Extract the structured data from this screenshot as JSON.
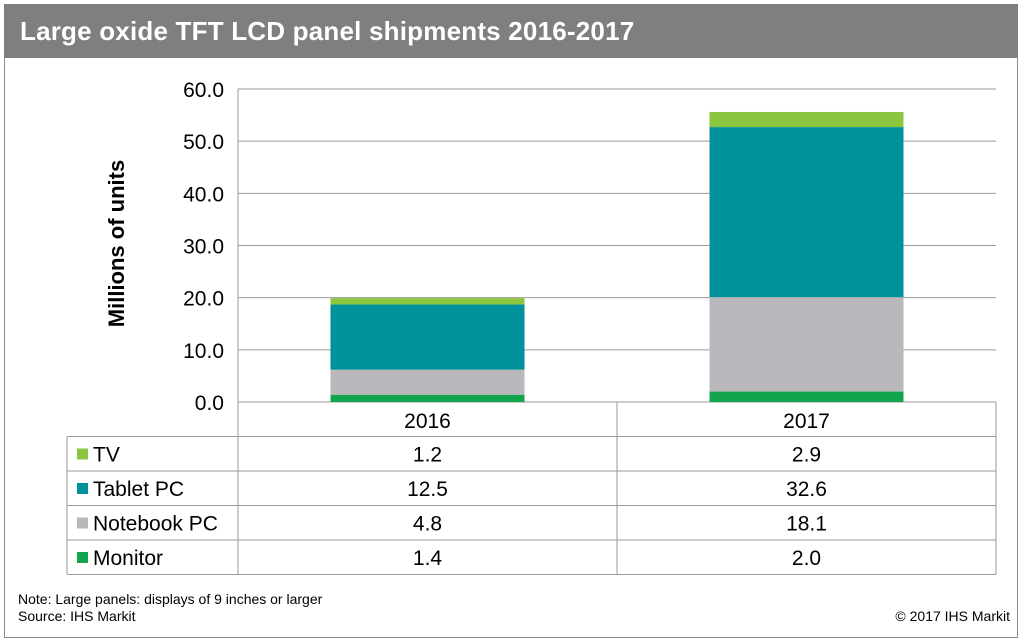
{
  "header": {
    "title": "Large oxide TFT LCD panel shipments 2016-2017"
  },
  "chart_data": {
    "type": "bar",
    "stacked": true,
    "title": "Large oxide TFT LCD panel shipments 2016-2017",
    "xlabel": "",
    "ylabel": "Millions of units",
    "ylim": [
      0,
      60
    ],
    "yticks": [
      "0.0",
      "10.0",
      "20.0",
      "30.0",
      "40.0",
      "50.0",
      "60.0"
    ],
    "grid": true,
    "legend": "data-table",
    "categories": [
      "2016",
      "2017"
    ],
    "series": [
      {
        "name": "Monitor",
        "values": [
          1.4,
          2.0
        ],
        "color": "#13a54d"
      },
      {
        "name": "Notebook PC",
        "values": [
          4.8,
          18.1
        ],
        "color": "#b8b8bd"
      },
      {
        "name": "Tablet PC",
        "values": [
          12.5,
          32.6
        ],
        "color": "#00929a"
      },
      {
        "name": "TV",
        "values": [
          1.2,
          2.9
        ],
        "color": "#8cc63f"
      }
    ],
    "table_rows": [
      {
        "name": "TV",
        "values": [
          "1.2",
          "2.9"
        ],
        "color": "#8cc63f"
      },
      {
        "name": "Tablet PC",
        "values": [
          "12.5",
          "32.6"
        ],
        "color": "#00929a"
      },
      {
        "name": "Notebook PC",
        "values": [
          "4.8",
          "18.1"
        ],
        "color": "#b8b8bd"
      },
      {
        "name": "Monitor",
        "values": [
          "1.4",
          "2.0"
        ],
        "color": "#13a54d"
      }
    ]
  },
  "footer": {
    "note": "Note: Large panels: displays of 9 inches or larger",
    "source": "Source: IHS Markit",
    "copyright": "© 2017 IHS Markit"
  }
}
